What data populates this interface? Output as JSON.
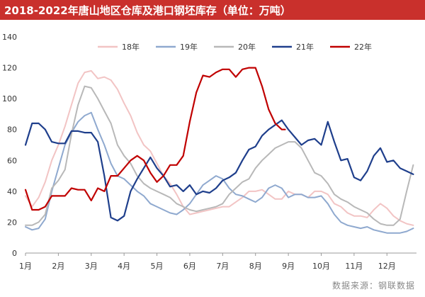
{
  "title": "2018-2022年唐山地区仓库及港口钢坯库存（单位：万吨）",
  "source": "数据来源：钢联数据",
  "chart_data": {
    "type": "line",
    "title": "2018-2022年唐山地区仓库及港口钢坯库存（单位：万吨）",
    "xlabel": "",
    "ylabel": "",
    "ylim": [
      0,
      140
    ],
    "yticks": [
      0,
      20,
      40,
      60,
      80,
      100,
      120,
      140
    ],
    "xlim": [
      1,
      12.9
    ],
    "month_labels": [
      "1月",
      "2月",
      "3月",
      "4月",
      "5月",
      "6月",
      "7月",
      "8月",
      "9月",
      "10月",
      "11月",
      "12月"
    ],
    "grid": false,
    "legend_position": "top",
    "series": [
      {
        "name": "18年",
        "color": "#f2c4c4",
        "x": [
          1.0,
          1.2,
          1.4,
          1.6,
          1.8,
          2.0,
          2.2,
          2.4,
          2.6,
          2.8,
          3.0,
          3.2,
          3.4,
          3.6,
          3.8,
          4.0,
          4.2,
          4.4,
          4.6,
          4.8,
          5.0,
          5.2,
          5.4,
          5.6,
          5.8,
          6.0,
          6.2,
          6.4,
          6.6,
          6.8,
          7.0,
          7.2,
          7.4,
          7.6,
          7.8,
          8.0,
          8.2,
          8.4,
          8.6,
          8.8,
          9.0,
          9.2,
          9.4,
          9.6,
          9.8,
          10.0,
          10.2,
          10.4,
          10.6,
          10.8,
          11.0,
          11.2,
          11.4,
          11.6,
          11.8,
          12.0,
          12.2,
          12.4,
          12.6,
          12.8
        ],
        "values": [
          37,
          30,
          36,
          46,
          60,
          70,
          82,
          96,
          110,
          117,
          118,
          113,
          114,
          112,
          106,
          97,
          89,
          78,
          70,
          66,
          58,
          50,
          45,
          38,
          30,
          25,
          26,
          27,
          28,
          29,
          30,
          30,
          33,
          36,
          40,
          40,
          41,
          38,
          35,
          35,
          40,
          38,
          38,
          36,
          40,
          40,
          38,
          32,
          30,
          26,
          24,
          24,
          23,
          28,
          32,
          29,
          24,
          21,
          19,
          18
        ]
      },
      {
        "name": "19年",
        "color": "#8fa9cf",
        "x": [
          1.0,
          1.2,
          1.4,
          1.6,
          1.8,
          2.0,
          2.2,
          2.4,
          2.6,
          2.8,
          3.0,
          3.2,
          3.4,
          3.6,
          3.8,
          4.0,
          4.2,
          4.4,
          4.6,
          4.8,
          5.0,
          5.2,
          5.4,
          5.6,
          5.8,
          6.0,
          6.2,
          6.4,
          6.6,
          6.8,
          7.0,
          7.2,
          7.4,
          7.6,
          7.8,
          8.0,
          8.2,
          8.4,
          8.6,
          8.8,
          9.0,
          9.2,
          9.4,
          9.6,
          9.8,
          10.0,
          10.2,
          10.4,
          10.6,
          10.8,
          11.0,
          11.2,
          11.4,
          11.6,
          11.8,
          12.0,
          12.2,
          12.4,
          12.6,
          12.8
        ],
        "values": [
          17,
          15,
          16,
          22,
          40,
          55,
          70,
          78,
          85,
          89,
          91,
          80,
          70,
          58,
          50,
          48,
          44,
          40,
          37,
          32,
          30,
          28,
          26,
          25,
          28,
          32,
          38,
          44,
          47,
          50,
          48,
          42,
          38,
          37,
          35,
          33,
          36,
          42,
          44,
          42,
          36,
          38,
          38,
          36,
          36,
          37,
          32,
          25,
          20,
          18,
          17,
          16,
          17,
          15,
          14,
          13,
          13,
          13,
          14,
          16
        ]
      },
      {
        "name": "20年",
        "color": "#b8b8b8",
        "x": [
          1.0,
          1.2,
          1.4,
          1.6,
          1.8,
          2.0,
          2.2,
          2.4,
          2.6,
          2.8,
          3.0,
          3.2,
          3.4,
          3.6,
          3.8,
          4.0,
          4.2,
          4.4,
          4.6,
          4.8,
          5.0,
          5.2,
          5.4,
          5.6,
          5.8,
          6.0,
          6.2,
          6.4,
          6.6,
          6.8,
          7.0,
          7.2,
          7.4,
          7.6,
          7.8,
          8.0,
          8.2,
          8.4,
          8.6,
          8.8,
          9.0,
          9.2,
          9.4,
          9.6,
          9.8,
          10.0,
          10.2,
          10.4,
          10.6,
          10.8,
          11.0,
          11.2,
          11.4,
          11.6,
          11.8,
          12.0,
          12.2,
          12.4,
          12.6,
          12.8
        ],
        "values": [
          18,
          18,
          20,
          25,
          42,
          47,
          54,
          77,
          96,
          108,
          107,
          100,
          92,
          84,
          70,
          63,
          58,
          50,
          45,
          42,
          40,
          38,
          36,
          32,
          30,
          28,
          27,
          28,
          29,
          30,
          32,
          38,
          42,
          46,
          48,
          55,
          60,
          64,
          68,
          70,
          72,
          72,
          68,
          60,
          52,
          50,
          45,
          38,
          35,
          33,
          30,
          28,
          26,
          22,
          19,
          18,
          18,
          22,
          40,
          57
        ]
      },
      {
        "name": "21年",
        "color": "#1f3f8c",
        "x": [
          1.0,
          1.2,
          1.4,
          1.6,
          1.8,
          2.0,
          2.2,
          2.4,
          2.6,
          2.8,
          3.0,
          3.2,
          3.4,
          3.6,
          3.8,
          4.0,
          4.2,
          4.4,
          4.6,
          4.8,
          5.0,
          5.2,
          5.4,
          5.6,
          5.8,
          6.0,
          6.2,
          6.4,
          6.6,
          6.8,
          7.0,
          7.2,
          7.4,
          7.6,
          7.8,
          8.0,
          8.2,
          8.4,
          8.6,
          8.8,
          9.0,
          9.2,
          9.4,
          9.6,
          9.8,
          10.0,
          10.2,
          10.4,
          10.6,
          10.8,
          11.0,
          11.2,
          11.4,
          11.6,
          11.8,
          12.0,
          12.2,
          12.4,
          12.6,
          12.8
        ],
        "values": [
          70,
          84,
          84,
          80,
          72,
          71,
          71,
          79,
          79,
          78,
          78,
          72,
          50,
          23,
          21,
          24,
          40,
          48,
          55,
          62,
          55,
          50,
          43,
          44,
          40,
          44,
          38,
          40,
          39,
          42,
          47,
          49,
          52,
          60,
          67,
          69,
          76,
          80,
          83,
          86,
          80,
          75,
          70,
          73,
          74,
          70,
          85,
          72,
          60,
          61,
          49,
          47,
          53,
          63,
          68,
          59,
          60,
          55,
          53,
          51
        ]
      },
      {
        "name": "22年",
        "color": "#c00000",
        "x": [
          1.0,
          1.2,
          1.4,
          1.6,
          1.8,
          2.0,
          2.2,
          2.4,
          2.6,
          2.8,
          3.0,
          3.2,
          3.4,
          3.6,
          3.8,
          4.0,
          4.2,
          4.4,
          4.6,
          4.8,
          5.0,
          5.2,
          5.4,
          5.6,
          5.8,
          6.0,
          6.2,
          6.4,
          6.6,
          6.8,
          7.0,
          7.2,
          7.4,
          7.6,
          7.8,
          8.0,
          8.2,
          8.4,
          8.6,
          8.8,
          8.9
        ],
        "values": [
          41,
          28,
          28,
          30,
          37,
          37,
          37,
          42,
          41,
          41,
          34,
          42,
          40,
          50,
          50,
          55,
          60,
          63,
          60,
          52,
          46,
          50,
          57,
          57,
          63,
          85,
          104,
          115,
          114,
          117,
          119,
          119,
          114,
          119,
          120,
          120,
          108,
          93,
          84,
          80,
          80
        ]
      }
    ]
  }
}
